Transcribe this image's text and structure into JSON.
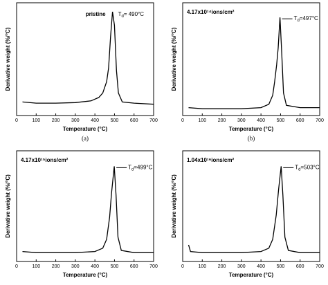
{
  "chart_data": [
    {
      "type": "line",
      "xlabel": "Temperature (°C)",
      "ylabel": "Derivative weight (%/°C)",
      "caption": "(a)",
      "sample": "pristine",
      "annotation": {
        "symbol": "T",
        "subscript": "d",
        "text": "= 490°C"
      },
      "x": [
        30,
        100,
        200,
        300,
        380,
        420,
        440,
        460,
        470,
        480,
        490,
        500,
        510,
        520,
        540,
        600,
        700
      ],
      "values": [
        12,
        11,
        11,
        11.5,
        13,
        16,
        20,
        30,
        42,
        70,
        92,
        80,
        40,
        20,
        12,
        11,
        10
      ],
      "color": "#000000",
      "xlim": [
        0,
        700
      ],
      "ylim": [
        0,
        100
      ],
      "xticks": [
        0,
        100,
        200,
        300,
        400,
        500,
        600,
        700
      ]
    },
    {
      "type": "line",
      "xlabel": "Temperature (°C)",
      "ylabel": "Derivative weight (%/°C)",
      "caption": "(b)",
      "sample": "4.17x10¹⁴ions/cm²",
      "annotation": {
        "symbol": "T",
        "subscript": "d",
        "text": "=497°C"
      },
      "x": [
        30,
        100,
        200,
        300,
        400,
        440,
        460,
        470,
        480,
        488,
        497,
        505,
        515,
        530,
        600,
        700
      ],
      "values": [
        7,
        6,
        6,
        6,
        7,
        10,
        18,
        30,
        45,
        60,
        87,
        60,
        20,
        9,
        7,
        7
      ],
      "color": "#000000",
      "xlim": [
        0,
        700
      ],
      "ylim": [
        0,
        100
      ],
      "xticks": [
        0,
        100,
        200,
        300,
        400,
        500,
        600,
        700
      ]
    },
    {
      "type": "line",
      "xlabel": "Temperature (°C)",
      "ylabel": "Derivative weight (%/°C)",
      "sample": "4.17x10¹⁵ions/cm²",
      "annotation": {
        "symbol": "T",
        "subscript": "d",
        "text": "=499°C"
      },
      "x": [
        30,
        100,
        200,
        300,
        400,
        440,
        460,
        475,
        485,
        499,
        508,
        518,
        535,
        600,
        700
      ],
      "values": [
        9,
        8,
        8,
        8,
        9,
        12,
        20,
        40,
        62,
        86,
        60,
        22,
        10,
        8,
        8
      ],
      "color": "#000000",
      "xlim": [
        0,
        700
      ],
      "ylim": [
        0,
        100
      ],
      "xticks": [
        0,
        100,
        200,
        300,
        400,
        500,
        600,
        700
      ]
    },
    {
      "type": "line",
      "xlabel": "Temperature (°C)",
      "ylabel": "Derivative weight (%/°C)",
      "sample": "1.04x10¹⁶ions/cm²",
      "annotation": {
        "symbol": "T",
        "subscript": "d",
        "text": "=503°C"
      },
      "x": [
        30,
        40,
        100,
        200,
        300,
        400,
        440,
        460,
        478,
        490,
        503,
        512,
        522,
        540,
        600,
        700
      ],
      "values": [
        15,
        9,
        8,
        8,
        8,
        9,
        12,
        20,
        42,
        65,
        86,
        60,
        22,
        10,
        8,
        8
      ],
      "color": "#000000",
      "xlim": [
        0,
        700
      ],
      "ylim": [
        0,
        100
      ],
      "xticks": [
        0,
        100,
        200,
        300,
        400,
        500,
        600,
        700
      ]
    }
  ]
}
